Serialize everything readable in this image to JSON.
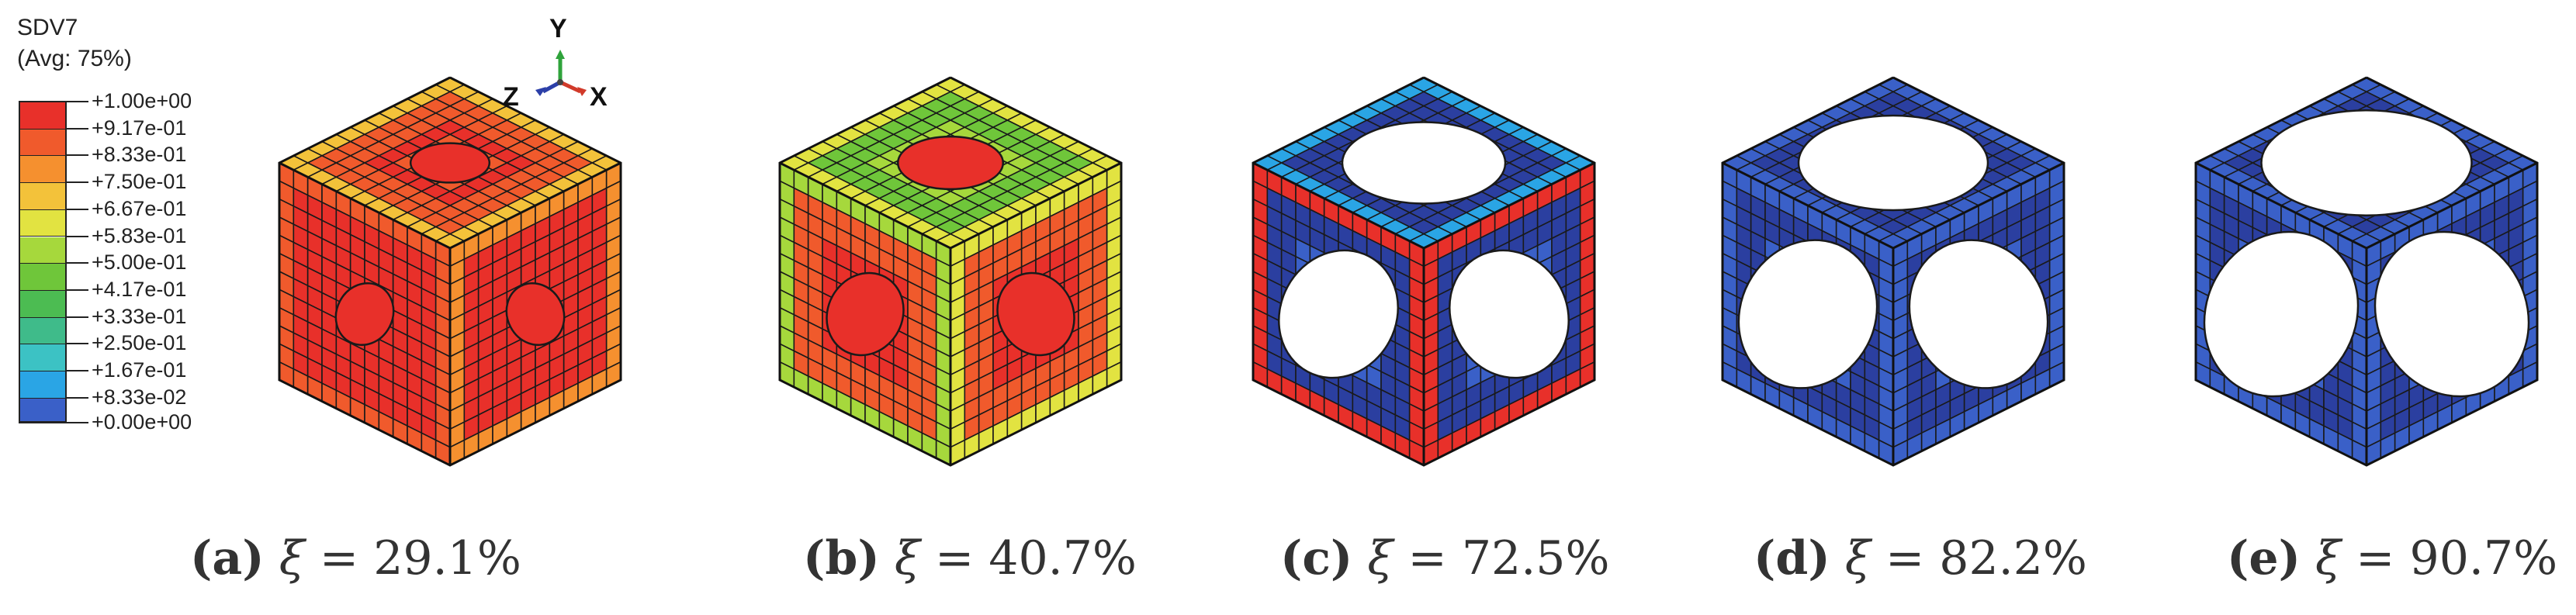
{
  "legend": {
    "variable": "SDV7",
    "averaging": "(Avg: 75%)",
    "values": [
      "+1.00e+00",
      "+9.17e-01",
      "+8.33e-01",
      "+7.50e-01",
      "+6.67e-01",
      "+5.83e-01",
      "+5.00e-01",
      "+4.17e-01",
      "+3.33e-01",
      "+2.50e-01",
      "+1.67e-01",
      "+8.33e-02",
      "+0.00e+00"
    ],
    "colors": [
      "#e8302a",
      "#f05a2c",
      "#f5902f",
      "#f3c23a",
      "#e2e341",
      "#a6d83c",
      "#6fc63a",
      "#4cbc52",
      "#3fbb8a",
      "#3cc2c4",
      "#2aa5e5",
      "#3a60c8",
      "#2b3fa0"
    ]
  },
  "axes": {
    "y": "Y",
    "z": "Z",
    "x": "X"
  },
  "panels": [
    {
      "letter": "(a)",
      "symbol": "ξ",
      "equals": "=",
      "value": "29.1%",
      "colormix": "mostly-red"
    },
    {
      "letter": "(b)",
      "symbol": "ξ",
      "equals": "=",
      "value": "40.7%",
      "colormix": "red-green"
    },
    {
      "letter": "(c)",
      "symbol": "ξ",
      "equals": "=",
      "value": "72.5%",
      "colormix": "blue-red"
    },
    {
      "letter": "(d)",
      "symbol": "ξ",
      "equals": "=",
      "value": "82.2%",
      "colormix": "mostly-blue"
    },
    {
      "letter": "(e)",
      "symbol": "ξ",
      "equals": "=",
      "value": "90.7%",
      "colormix": "mostly-blue"
    }
  ]
}
